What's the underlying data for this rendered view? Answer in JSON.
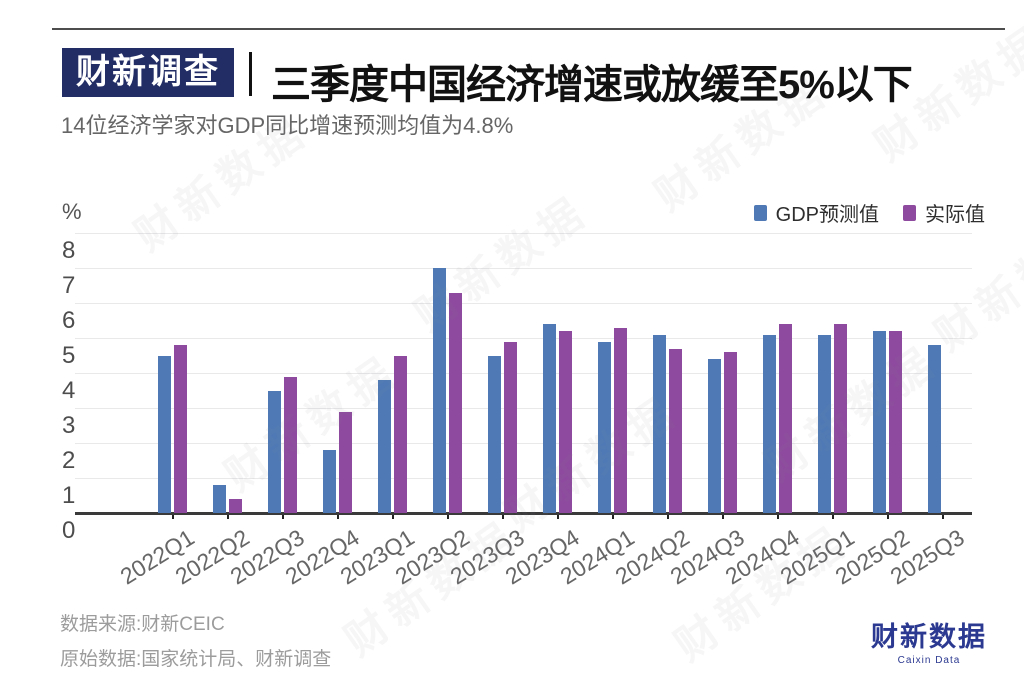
{
  "header": {
    "badge": "财新调查",
    "title": "三季度中国经济增速或放缓至5%以下",
    "subtitle": "14位经济学家对GDP同比增速预测均值为4.8%"
  },
  "legend": [
    {
      "label": "GDP预测值",
      "color": "#4e79b5"
    },
    {
      "label": "实际值",
      "color": "#8e4a9e"
    }
  ],
  "y_axis": {
    "unit_label": "%",
    "ticks": [
      0,
      1,
      2,
      3,
      4,
      5,
      6,
      7,
      8
    ]
  },
  "chart_data": {
    "type": "bar",
    "title": "三季度中国经济增速或放缓至5%以下",
    "subtitle": "14位经济学家对GDP同比增速预测均值为4.8%",
    "xlabel": "",
    "ylabel": "%",
    "ylim": [
      0,
      8
    ],
    "grid": true,
    "legend_position": "top-right",
    "categories": [
      "2022Q1",
      "2022Q2",
      "2022Q3",
      "2022Q4",
      "2023Q1",
      "2023Q2",
      "2023Q3",
      "2023Q4",
      "2024Q1",
      "2024Q2",
      "2024Q3",
      "2024Q4",
      "2025Q1",
      "2025Q2",
      "2025Q3"
    ],
    "series": [
      {
        "name": "GDP预测值",
        "color": "#4e79b5",
        "values": [
          4.5,
          0.8,
          3.5,
          1.8,
          3.8,
          7.0,
          4.5,
          5.4,
          4.9,
          5.1,
          4.4,
          5.1,
          5.1,
          5.2,
          4.8
        ]
      },
      {
        "name": "实际值",
        "color": "#8e4a9e",
        "values": [
          4.8,
          0.4,
          3.9,
          2.9,
          4.5,
          6.3,
          4.9,
          5.2,
          5.3,
          4.7,
          4.6,
          5.4,
          5.4,
          5.2,
          null
        ]
      }
    ]
  },
  "footer": {
    "source_line": "数据来源:财新CEIC",
    "raw_data_line": "原始数据:国家统计局、财新调查"
  },
  "logo": {
    "name": "财新数据",
    "subtext": "Caixin Data"
  },
  "watermark_text": "财新数据"
}
